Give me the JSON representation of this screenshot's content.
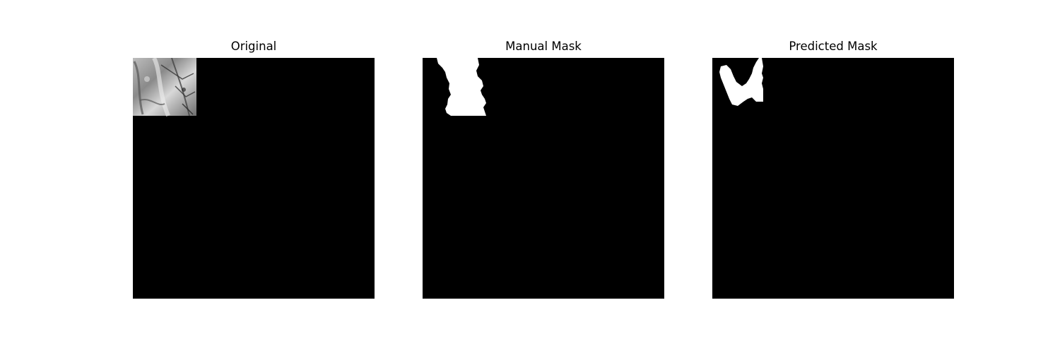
{
  "panels": [
    {
      "title": "Original"
    },
    {
      "title": "Manual Mask"
    },
    {
      "title": "Predicted Mask"
    }
  ],
  "colors": {
    "background": "#ffffff",
    "image_background": "#000000",
    "mask_foreground": "#ffffff"
  }
}
